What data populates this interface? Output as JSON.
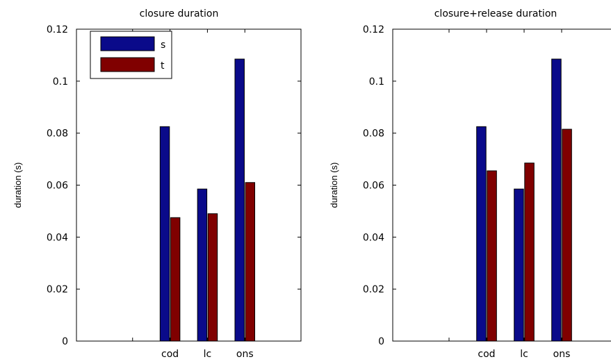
{
  "chart_data": [
    {
      "type": "bar",
      "title": "closure duration",
      "xlabel": "",
      "ylabel": "duration (s)",
      "categories": [
        "cod",
        "lc",
        "ons"
      ],
      "ylim": [
        0,
        0.12
      ],
      "yticks": [
        "0",
        "0.02",
        "0.04",
        "0.06",
        "0.08",
        "0.1",
        "0.12"
      ],
      "series": [
        {
          "name": "s",
          "color": "#0a0a8a",
          "values": [
            0.0825,
            0.0585,
            0.1085
          ]
        },
        {
          "name": "t",
          "color": "#800000",
          "values": [
            0.0475,
            0.049,
            0.061
          ]
        }
      ],
      "legend": "top-left",
      "grid": false
    },
    {
      "type": "bar",
      "title": "closure+release duration",
      "xlabel": "",
      "ylabel": "duration (s)",
      "categories": [
        "cod",
        "lc",
        "ons"
      ],
      "ylim": [
        0,
        0.12
      ],
      "yticks": [
        "0",
        "0.02",
        "0.04",
        "0.06",
        "0.08",
        "0.1",
        "0.12"
      ],
      "series": [
        {
          "name": "s",
          "color": "#0a0a8a",
          "values": [
            0.0825,
            0.0585,
            0.1085
          ]
        },
        {
          "name": "t",
          "color": "#800000",
          "values": [
            0.0655,
            0.0685,
            0.0815
          ]
        }
      ],
      "grid": false
    }
  ]
}
